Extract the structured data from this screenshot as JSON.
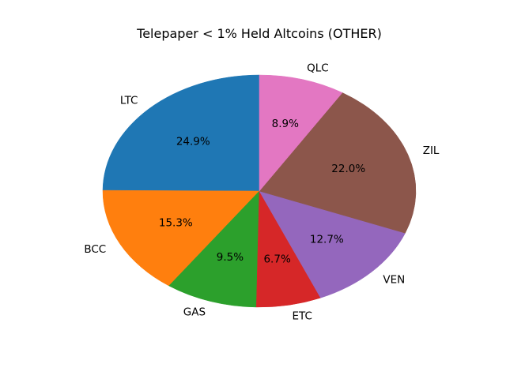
{
  "chart_data": {
    "type": "pie",
    "title": "Telepaper < 1% Held Altcoins (OTHER)",
    "start_angle_deg": 90,
    "direction": "counterclockwise",
    "slices": [
      {
        "label": "LTC",
        "value": 24.9,
        "pct_label": "24.9%",
        "color": "#1f77b4"
      },
      {
        "label": "BCC",
        "value": 15.3,
        "pct_label": "15.3%",
        "color": "#ff7f0e"
      },
      {
        "label": "GAS",
        "value": 9.5,
        "pct_label": "9.5%",
        "color": "#2ca02c"
      },
      {
        "label": "ETC",
        "value": 6.7,
        "pct_label": "6.7%",
        "color": "#d62728"
      },
      {
        "label": "VEN",
        "value": 12.7,
        "pct_label": "12.7%",
        "color": "#9467bd"
      },
      {
        "label": "ZIL",
        "value": 22.0,
        "pct_label": "22.0%",
        "color": "#8c564b"
      },
      {
        "label": "QLC",
        "value": 8.9,
        "pct_label": "8.9%",
        "color": "#e377c2"
      }
    ]
  }
}
